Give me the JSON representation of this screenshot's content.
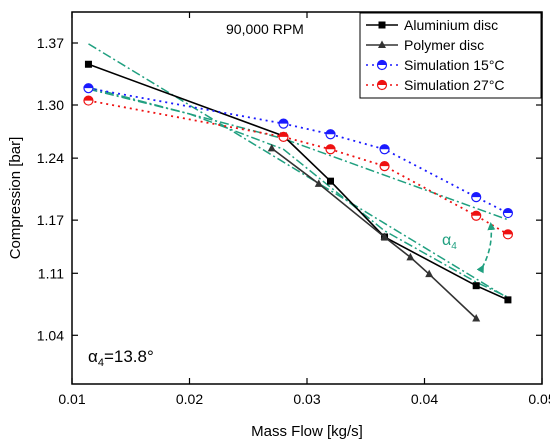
{
  "chart_data": {
    "type": "line",
    "xlabel": "Mass Flow [kg/s]",
    "ylabel": "Compression [bar]",
    "xlim": [
      0.01,
      0.05
    ],
    "ylim": [
      0.985,
      1.405
    ],
    "xticks": [
      0.01,
      0.02,
      0.03,
      0.04,
      0.05
    ],
    "xtick_labels": [
      "0.01",
      "0.02",
      "0.03",
      "0.04",
      "0.05"
    ],
    "yticks": [
      1.04,
      1.11,
      1.17,
      1.24,
      1.3,
      1.37
    ],
    "ytick_labels": [
      "1.04",
      "1.11",
      "1.17",
      "1.24",
      "1.30",
      "1.37"
    ],
    "grid": false,
    "legend_position": "top-right",
    "series": [
      {
        "name": "Aluminium disc",
        "color": "#000000",
        "line": "solid",
        "marker": "square",
        "x": [
          0.0114,
          0.028,
          0.032,
          0.0366,
          0.0444,
          0.0471
        ],
        "y": [
          1.346,
          1.265,
          1.214,
          1.151,
          1.096,
          1.08
        ]
      },
      {
        "name": "Polymer disc",
        "color": "#333333",
        "line": "solid",
        "marker": "triangle",
        "x": [
          0.027,
          0.031,
          0.0366,
          0.0388,
          0.0404,
          0.0444
        ],
        "y": [
          1.251,
          1.211,
          1.151,
          1.128,
          1.109,
          1.059
        ]
      },
      {
        "name": "Simulation 15°C",
        "color": "#1a1aff",
        "line": "dotted",
        "marker": "half-circle",
        "x": [
          0.0114,
          0.028,
          0.032,
          0.0366,
          0.0444,
          0.0471
        ],
        "y": [
          1.319,
          1.279,
          1.267,
          1.25,
          1.196,
          1.178
        ]
      },
      {
        "name": "Simulation 27°C",
        "color": "#ee1111",
        "line": "dotted",
        "marker": "half-circle",
        "x": [
          0.0114,
          0.028,
          0.032,
          0.0366,
          0.0444,
          0.0471
        ],
        "y": [
          1.305,
          1.264,
          1.25,
          1.231,
          1.175,
          1.154
        ]
      }
    ],
    "trend_lines": [
      {
        "color": "#20a080",
        "points": [
          [
            0.0114,
            1.369
          ],
          [
            0.0471,
            1.082
          ]
        ]
      },
      {
        "color": "#20a080",
        "points": [
          [
            0.0114,
            1.32
          ],
          [
            0.028,
            1.262
          ],
          [
            0.047,
            1.171
          ]
        ]
      },
      {
        "color": "#20a080",
        "points": [
          [
            0.0114,
            1.318
          ],
          [
            0.02,
            1.29
          ],
          [
            0.028,
            1.25
          ],
          [
            0.0366,
            1.158
          ],
          [
            0.0444,
            1.1
          ],
          [
            0.0471,
            1.083
          ]
        ]
      }
    ],
    "annotations": {
      "rpm": "90,000 RPM",
      "alpha_arrow_label": "α",
      "alpha_arrow_sub": "4",
      "alpha_value_prefix": "α",
      "alpha_value_sub": "4",
      "alpha_value_text": "=13.8°"
    }
  }
}
